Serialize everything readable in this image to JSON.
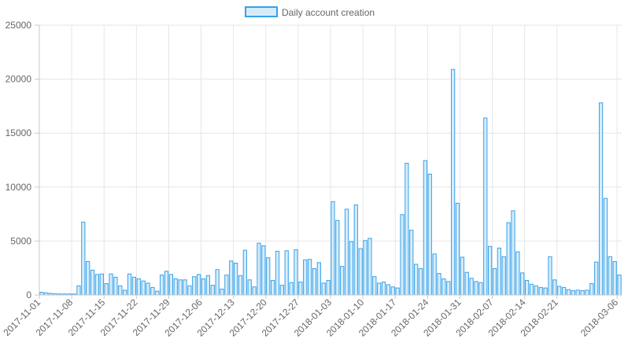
{
  "chart_data": {
    "type": "bar",
    "legend": {
      "label": "Daily account creation",
      "position": "top"
    },
    "colors": {
      "bar_fill": "#d6ecf9",
      "bar_stroke": "#36a2eb",
      "grid": "#e6e6e6",
      "axis": "#c8c8c8",
      "text": "#666666"
    },
    "grid": true,
    "ylim": [
      0,
      25000
    ],
    "y_ticks": [
      0,
      5000,
      10000,
      15000,
      20000,
      25000
    ],
    "x_tick_labels": [
      "2017-11-01",
      "2017-11-08",
      "2017-11-15",
      "2017-11-22",
      "2017-11-29",
      "2017-12-06",
      "2017-12-13",
      "2017-12-20",
      "2017-12-27",
      "2018-01-03",
      "2018-01-10",
      "2018-01-17",
      "2018-01-24",
      "2018-01-31",
      "2018-02-07",
      "2018-02-14",
      "2018-02-21",
      "2018-03-06"
    ],
    "x_start": "2017-11-01",
    "values": [
      250,
      200,
      150,
      120,
      100,
      100,
      100,
      100,
      850,
      6750,
      3100,
      2300,
      1900,
      1950,
      1050,
      1950,
      1650,
      850,
      450,
      1950,
      1650,
      1500,
      1300,
      1100,
      700,
      350,
      1850,
      2200,
      1900,
      1500,
      1400,
      1400,
      850,
      1700,
      1900,
      1500,
      1800,
      900,
      2350,
      550,
      1850,
      3150,
      2950,
      1800,
      4150,
      1400,
      750,
      4800,
      4550,
      3450,
      1350,
      4050,
      900,
      4100,
      1150,
      4200,
      1200,
      3250,
      3300,
      2450,
      3000,
      1100,
      1350,
      8650,
      6900,
      2650,
      7950,
      4950,
      8350,
      4300,
      5050,
      5250,
      1700,
      1100,
      1200,
      950,
      750,
      650,
      7450,
      12200,
      6000,
      2850,
      2450,
      12450,
      11200,
      3800,
      2000,
      1500,
      1250,
      20900,
      8500,
      3500,
      2100,
      1550,
      1250,
      1150,
      16400,
      4500,
      2450,
      4350,
      3550,
      6700,
      7800,
      4000,
      2050,
      1350,
      1000,
      850,
      700,
      650,
      3550,
      1400,
      800,
      700,
      500,
      400,
      450,
      400,
      450,
      1050,
      3050,
      17800,
      8950,
      3550,
      3100,
      1850
    ]
  }
}
